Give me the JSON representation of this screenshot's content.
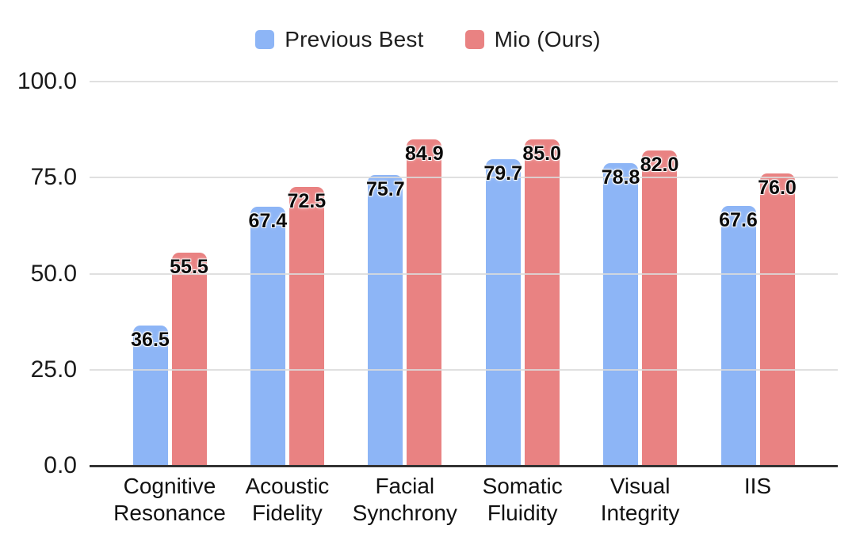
{
  "legend": {
    "items_note": "legend labels are bound from chart_data.series names"
  },
  "chart_data": {
    "type": "bar",
    "title": "",
    "xlabel": "",
    "ylabel": "",
    "categories": [
      "Cognitive Resonance",
      "Acoustic Fidelity",
      "Facial Synchrony",
      "Somatic Fluidity",
      "Visual Integrity",
      "IIS"
    ],
    "series": [
      {
        "name": "Previous Best",
        "color": "#8db5f6",
        "values": [
          36.5,
          67.4,
          75.7,
          79.7,
          78.8,
          67.6
        ]
      },
      {
        "name": "Mio (Ours)",
        "color": "#e98282",
        "values": [
          55.5,
          72.5,
          84.9,
          85.0,
          82.0,
          76.0
        ]
      }
    ],
    "ylim": [
      0,
      100
    ],
    "yticks": [
      0,
      25,
      50,
      75,
      100
    ],
    "ytick_labels": [
      "0.0",
      "25.0",
      "50.0",
      "75.0",
      "100.0"
    ],
    "value_labels": [
      "36.5",
      "55.5",
      "67.4",
      "72.5",
      "75.7",
      "84.9",
      "79.7",
      "85.0",
      "78.8",
      "82.0",
      "67.6",
      "76.0"
    ],
    "grid": true,
    "grid_color": "#dadada",
    "axis_color": "#333333",
    "legend_position": "top-center",
    "value_label_format": "one-decimal"
  }
}
